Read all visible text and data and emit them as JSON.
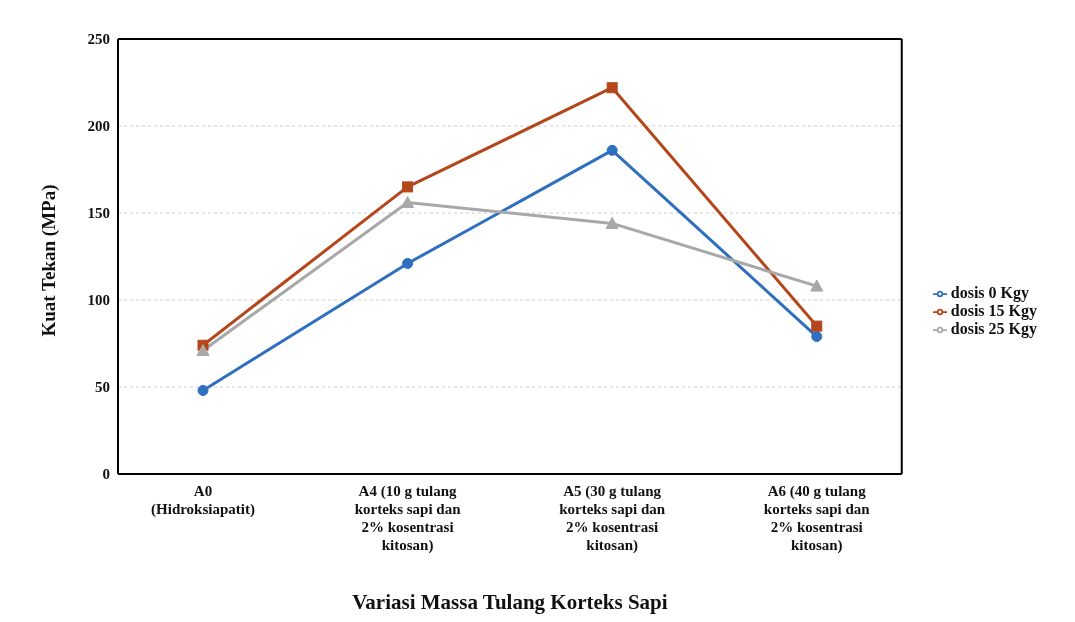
{
  "chart_data": {
    "type": "line",
    "xlabel": "Variasi Massa Tulang Korteks Sapi",
    "ylabel": "Kuat Tekan (MPa)",
    "categories": [
      "A0 (Hidroksiapatit)",
      "A4 (10 g tulang korteks sapi dan 2% kosentrasi kitosan)",
      "A5 (30 g tulang korteks sapi dan 2% kosentrasi kitosan)",
      "A6 (40 g tulang korteks sapi dan 2% kosentrasi kitosan)"
    ],
    "series": [
      {
        "name": "dosis 0 Kgy",
        "color": "#2e6fc0",
        "marker": "circle",
        "values": [
          48,
          121,
          186,
          79
        ]
      },
      {
        "name": "dosis 15 Kgy",
        "color": "#b5461c",
        "marker": "square",
        "values": [
          74,
          165,
          222,
          85
        ]
      },
      {
        "name": "dosis 25 Kgy",
        "color": "#a8a8a8",
        "marker": "triangle",
        "values": [
          71,
          156,
          144,
          108
        ]
      }
    ],
    "ylim": [
      0,
      250
    ],
    "yticks": [
      0,
      50,
      100,
      150,
      200,
      250
    ],
    "grid": "y",
    "legend": "right",
    "line_style": "solid"
  }
}
